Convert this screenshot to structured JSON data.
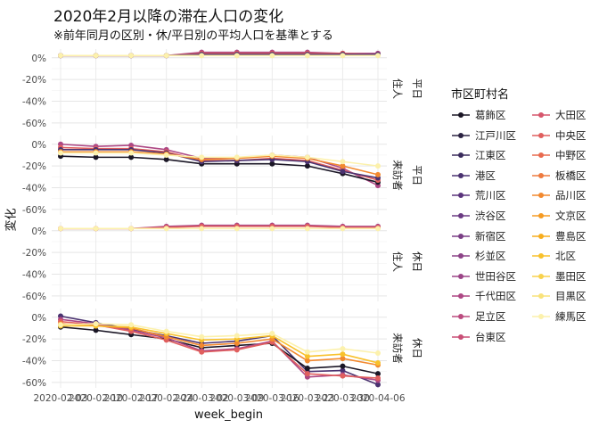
{
  "title": "2020年2月以降の滞在人口の変化",
  "subtitle": "※前年同月の区別・休/平日別の平均人口を基準とする",
  "legend_title": "市区町村名",
  "colors": {
    "葛飾区": "#1a1625",
    "江戸川区": "#2b2342",
    "江東区": "#3a2c5c",
    "港区": "#4a3270",
    "荒川区": "#5a347c",
    "渋谷区": "#6a3a82",
    "新宿区": "#7a3f85",
    "杉並区": "#8c4387",
    "世田谷区": "#9b4587",
    "千代田区": "#ad4784",
    "足立区": "#bb4b7f",
    "台東区": "#c94f76",
    "大田区": "#d6566c",
    "中央区": "#e05f5e",
    "中野区": "#e86a4f",
    "板橋区": "#ee7a3f",
    "品川区": "#f2892f",
    "文京区": "#f59b23",
    "豊島区": "#f7ad1e",
    "北区": "#f8c12c",
    "墨田区": "#f8d24d",
    "目黒区": "#f9e27a",
    "練馬区": "#fcf1ac"
  },
  "chart_data": {
    "type": "line",
    "x": [
      "2020-02-03",
      "2020-02-10",
      "2020-02-17",
      "2020-02-24",
      "2020-03-02",
      "2020-03-09",
      "2020-03-16",
      "2020-03-23",
      "2020-03-30",
      "2020-04-06"
    ],
    "xlabel": "week_begin",
    "ylabel": "変化",
    "ylim": [
      -65,
      8
    ],
    "yticks": [
      "0%",
      "-20%",
      "-40%",
      "-60%"
    ],
    "grid": true,
    "legend_position": "right",
    "legend": [
      "葛飾区",
      "江戸川区",
      "江東区",
      "港区",
      "荒川区",
      "渋谷区",
      "新宿区",
      "杉並区",
      "世田谷区",
      "千代田区",
      "足立区",
      "台東区",
      "大田区",
      "中央区",
      "中野区",
      "板橋区",
      "品川区",
      "文京区",
      "豊島区",
      "北区",
      "墨田区",
      "目黒区",
      "練馬区"
    ],
    "panels": [
      {
        "label_dow": "平日",
        "label_type": "住人",
        "series": [
          {
            "name": "千代田区",
            "values": [
              2,
              2,
              2,
              2,
              5,
              5,
              5,
              5,
              4,
              4
            ]
          },
          {
            "name": "中央区",
            "values": [
              2,
              2,
              2,
              2,
              4,
              4,
              4,
              4,
              4,
              3
            ]
          },
          {
            "name": "港区",
            "values": [
              2,
              2,
              2,
              2,
              3,
              3,
              3,
              3,
              3,
              3
            ]
          },
          {
            "name": "練馬区",
            "values": [
              2,
              2,
              2,
              2,
              2,
              2,
              2,
              2,
              2,
              2
            ]
          }
        ]
      },
      {
        "label_dow": "平日",
        "label_type": "来訪者",
        "series": [
          {
            "name": "千代田区",
            "values": [
              0,
              -2,
              -1,
              -5,
              -13,
              -13,
              -10,
              -12,
              -22,
              -38
            ]
          },
          {
            "name": "葛飾区",
            "values": [
              -11,
              -12,
              -12,
              -14,
              -18,
              -18,
              -18,
              -20,
              -27,
              -35
            ]
          },
          {
            "name": "中央区",
            "values": [
              -3,
              -4,
              -4,
              -7,
              -15,
              -15,
              -13,
              -15,
              -24,
              -33
            ]
          },
          {
            "name": "港区",
            "values": [
              -5,
              -5,
              -5,
              -8,
              -16,
              -15,
              -14,
              -16,
              -25,
              -31
            ]
          },
          {
            "name": "品川区",
            "values": [
              -7,
              -7,
              -7,
              -9,
              -14,
              -13,
              -11,
              -13,
              -20,
              -28
            ]
          },
          {
            "name": "練馬区",
            "values": [
              -8,
              -8,
              -8,
              -10,
              -12,
              -12,
              -10,
              -12,
              -16,
              -20
            ]
          }
        ]
      },
      {
        "label_dow": "休日",
        "label_type": "住人",
        "series": [
          {
            "name": "千代田区",
            "values": [
              2,
              2,
              2,
              4,
              5,
              5,
              5,
              5,
              4,
              4
            ]
          },
          {
            "name": "中央区",
            "values": [
              2,
              2,
              2,
              3,
              4,
              4,
              4,
              4,
              3,
              3
            ]
          },
          {
            "name": "練馬区",
            "values": [
              2,
              2,
              2,
              2,
              2,
              2,
              2,
              2,
              2,
              2
            ]
          }
        ]
      },
      {
        "label_dow": "休日",
        "label_type": "来訪者",
        "series": [
          {
            "name": "港区",
            "values": [
              1,
              -5,
              -11,
              -17,
              -24,
              -22,
              -17,
              -50,
              -49,
              -62
            ]
          },
          {
            "name": "葛飾区",
            "values": [
              -9,
              -12,
              -16,
              -20,
              -28,
              -26,
              -24,
              -47,
              -45,
              -52
            ]
          },
          {
            "name": "千代田区",
            "values": [
              -2,
              -6,
              -12,
              -19,
              -31,
              -29,
              -22,
              -55,
              -53,
              -58
            ]
          },
          {
            "name": "中央区",
            "values": [
              -4,
              -7,
              -13,
              -21,
              -32,
              -30,
              -23,
              -52,
              -54,
              -56
            ]
          },
          {
            "name": "品川区",
            "values": [
              -6,
              -8,
              -10,
              -18,
              -26,
              -24,
              -20,
              -40,
              -38,
              -44
            ]
          },
          {
            "name": "北区",
            "values": [
              -8,
              -8,
              -9,
              -15,
              -21,
              -20,
              -17,
              -36,
              -34,
              -42
            ]
          },
          {
            "name": "練馬区",
            "values": [
              -7,
              -6,
              -7,
              -13,
              -18,
              -17,
              -15,
              -32,
              -29,
              -33
            ]
          }
        ]
      }
    ]
  }
}
